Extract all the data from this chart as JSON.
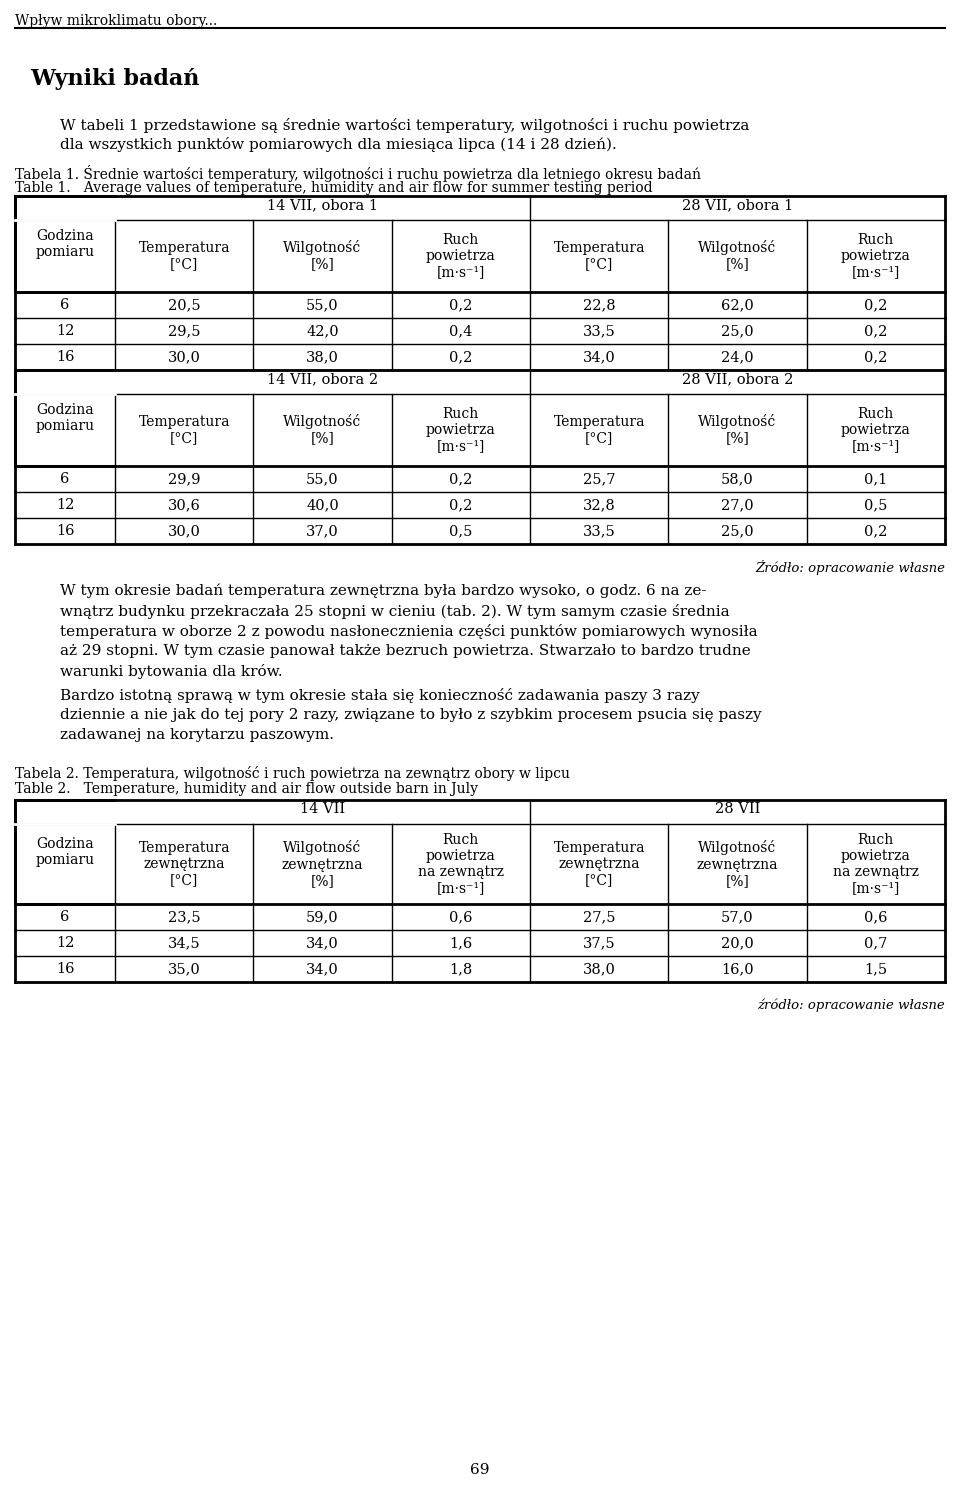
{
  "page_header": "Wpływ mikroklimatu obory...",
  "section_title": "Wyniki badań",
  "intro_line1": "W tabeli 1 przedstawione są średnie wartości temperatury, wilgotności i ruchu powietrza",
  "intro_line2": "dla wszystkich punktów pomiarowych dla miesiąca lipca (14 i 28 dzień).",
  "table1_caption_pl": "Tabela 1. Średnie wartości temperatury, wilgotności i ruchu powietrza dla letniego okresu badań",
  "table1_caption_en": "Table 1.   Average values of temperature, humidity and air flow for summer testing period",
  "table1_group1_header": "14 VII, obora 1",
  "table1_group2_header": "28 VII, obora 1",
  "table1_group3_header": "14 VII, obora 2",
  "table1_group4_header": "28 VII, obora 2",
  "table1_col_header_row1": [
    "Godzina\npomiaru",
    "Temperatura\n[°C]",
    "Wilgotność\n[%]",
    "Ruch\npowietrza\n[m·s⁻¹]",
    "Temperatura\n[°C]",
    "Wilgotność\n[%]",
    "Ruch\npowietrza\n[m·s⁻¹]"
  ],
  "table1_obora1_data": [
    [
      "6",
      "20,5",
      "55,0",
      "0,2",
      "22,8",
      "62,0",
      "0,2"
    ],
    [
      "12",
      "29,5",
      "42,0",
      "0,4",
      "33,5",
      "25,0",
      "0,2"
    ],
    [
      "16",
      "30,0",
      "38,0",
      "0,2",
      "34,0",
      "24,0",
      "0,2"
    ]
  ],
  "table1_obora2_data": [
    [
      "6",
      "29,9",
      "55,0",
      "0,2",
      "25,7",
      "58,0",
      "0,1"
    ],
    [
      "12",
      "30,6",
      "40,0",
      "0,2",
      "32,8",
      "27,0",
      "0,5"
    ],
    [
      "16",
      "30,0",
      "37,0",
      "0,5",
      "33,5",
      "25,0",
      "0,2"
    ]
  ],
  "source1": "Źródło: opracowanie własne",
  "para1_lines": [
    "W tym okresie badań temperatura zewnętrzna była bardzo wysoko, o godz. 6 na ze-",
    "wnątrz budynku przekraczała 25 stopni w cieniu (tab. 2). W tym samym czasie średnia",
    "temperatura w oborze 2 z powodu nasłonecznienia części punktów pomiarowych wynosiła",
    "aż 29 stopni. W tym czasie panował także bezruch powietrza. Stwarzało to bardzo trudne",
    "warunki bytowania dla krów."
  ],
  "para2_lines": [
    "Bardzo istotną sprawą w tym okresie stała się konieczność zadawania paszy 3 razy",
    "dziennie a nie jak do tej pory 2 razy, związane to było z szybkim procesem psucia się paszy",
    "zadawanej na korytarzu paszowym."
  ],
  "table2_caption_pl": "Tabela 2. Temperatura, wilgotność i ruch powietrza na zewnątrz obory w lipcu",
  "table2_caption_en": "Table 2.   Temperature, humidity and air flow outside barn in July",
  "table2_group1_header": "14 VII",
  "table2_group2_header": "28 VII",
  "table2_col_headers": [
    "Godzina\npomiaru",
    "Temperatura\nzewnętrzna\n[°C]",
    "Wilgotność\nzewnętrzna\n[%]",
    "Ruch\npowietrza\nna zewnątrz\n[m·s⁻¹]",
    "Temperatura\nzewnętrzna\n[°C]",
    "Wilgotność\nzewnętrzna\n[%]",
    "Ruch\npowietrza\nna zewnątrz\n[m·s⁻¹]"
  ],
  "table2_data": [
    [
      "6",
      "23,5",
      "59,0",
      "0,6",
      "27,5",
      "57,0",
      "0,6"
    ],
    [
      "12",
      "34,5",
      "34,0",
      "1,6",
      "37,5",
      "20,0",
      "0,7"
    ],
    [
      "16",
      "35,0",
      "34,0",
      "1,8",
      "38,0",
      "16,0",
      "1,5"
    ]
  ],
  "source2": "źródło: opracowanie własne",
  "page_number": "69",
  "bg": "#ffffff",
  "fg": "#000000"
}
